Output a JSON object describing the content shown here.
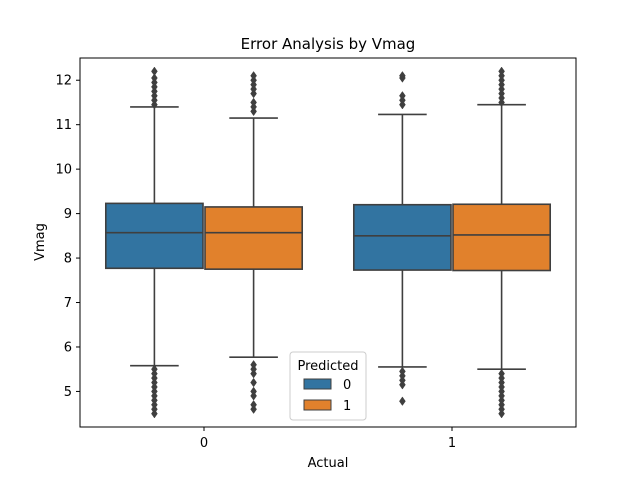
{
  "chart_data": {
    "type": "box",
    "title": "Error Analysis by Vmag",
    "xlabel": "Actual",
    "ylabel": "Vmag",
    "categories": [
      "0",
      "1"
    ],
    "ylim": [
      4.2,
      12.5
    ],
    "yticks": [
      5,
      6,
      7,
      8,
      9,
      10,
      11,
      12
    ],
    "grid": false,
    "legend": {
      "title": "Predicted",
      "position": "bottom-center",
      "entries": [
        {
          "label": "0",
          "color": "#3274a1"
        },
        {
          "label": "1",
          "color": "#e1812c"
        }
      ]
    },
    "series": [
      {
        "name": "0",
        "color": "#3274a1",
        "boxes": [
          {
            "q1": 7.77,
            "median": 8.57,
            "q3": 9.23,
            "whisker_low": 5.58,
            "whisker_high": 11.4,
            "outliers": [
              4.5,
              4.6,
              4.7,
              4.8,
              4.9,
              5.0,
              5.1,
              5.2,
              5.3,
              5.4,
              5.5,
              11.45,
              11.55,
              11.65,
              11.75,
              11.85,
              11.95,
              12.05,
              12.2
            ]
          },
          {
            "q1": 7.73,
            "median": 8.5,
            "q3": 9.2,
            "whisker_low": 5.55,
            "whisker_high": 11.23,
            "outliers": [
              4.78,
              5.15,
              5.25,
              5.35,
              5.45,
              11.45,
              11.55,
              11.65,
              12.05,
              12.1
            ]
          }
        ]
      },
      {
        "name": "1",
        "color": "#e1812c",
        "boxes": [
          {
            "q1": 7.75,
            "median": 8.57,
            "q3": 9.15,
            "whisker_low": 5.77,
            "whisker_high": 11.15,
            "outliers": [
              4.6,
              4.7,
              4.9,
              5.0,
              5.2,
              5.4,
              5.5,
              5.6,
              11.3,
              11.4,
              11.5,
              11.7,
              11.8,
              11.9,
              12.0,
              12.1
            ]
          },
          {
            "q1": 7.72,
            "median": 8.52,
            "q3": 9.21,
            "whisker_low": 5.5,
            "whisker_high": 11.45,
            "outliers": [
              4.5,
              4.6,
              4.7,
              4.8,
              4.9,
              5.0,
              5.1,
              5.2,
              5.3,
              5.4,
              11.5,
              11.6,
              11.7,
              11.8,
              11.9,
              12.0,
              12.1,
              12.2
            ]
          }
        ]
      }
    ]
  }
}
